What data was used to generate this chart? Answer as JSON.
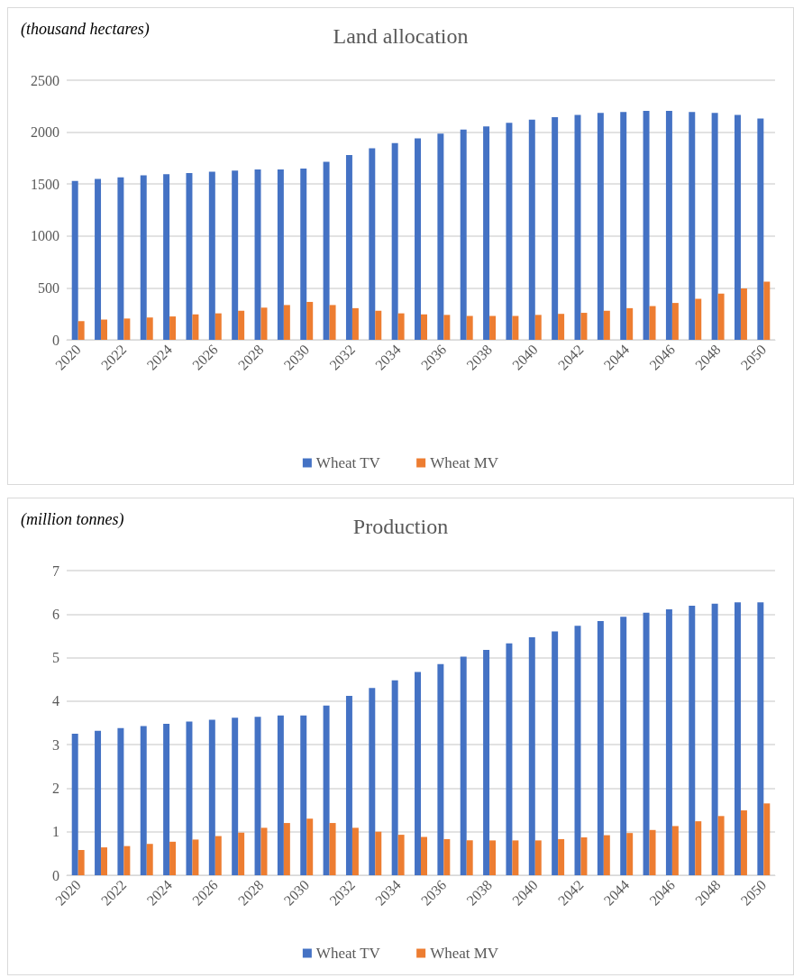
{
  "chart_data": [
    {
      "type": "bar",
      "title": "Land allocation",
      "ylabel": "(thousand hectares)",
      "categories": [
        "2020",
        null,
        "2022",
        null,
        "2024",
        null,
        "2026",
        null,
        "2028",
        null,
        "2030",
        null,
        "2032",
        null,
        "2034",
        null,
        "2036",
        null,
        "2038",
        null,
        "2040",
        null,
        "2042",
        null,
        "2044",
        null,
        "2046",
        null,
        "2048",
        null,
        "2050"
      ],
      "series": [
        {
          "name": "Wheat TV",
          "color": "#4472c4",
          "values": [
            1530,
            1550,
            1565,
            1585,
            1595,
            1605,
            1620,
            1630,
            1640,
            1640,
            1650,
            1715,
            1780,
            1845,
            1895,
            1940,
            1985,
            2025,
            2055,
            2090,
            2120,
            2145,
            2165,
            2185,
            2195,
            2205,
            2205,
            2195,
            2185,
            2165,
            2130
          ]
        },
        {
          "name": "Wheat MV",
          "color": "#ed7d31",
          "values": [
            180,
            195,
            205,
            215,
            225,
            245,
            255,
            280,
            310,
            335,
            365,
            335,
            305,
            280,
            255,
            245,
            240,
            230,
            230,
            230,
            240,
            250,
            260,
            280,
            305,
            325,
            355,
            395,
            445,
            495,
            560
          ]
        }
      ],
      "ylim": [
        0,
        2500
      ],
      "yticks": [
        0,
        500,
        1000,
        1500,
        2000,
        2500
      ],
      "grid": "y",
      "legend": "bottom"
    },
    {
      "type": "bar",
      "title": "Production",
      "ylabel": "(million tonnes)",
      "categories": [
        "2020",
        null,
        "2022",
        null,
        "2024",
        null,
        "2026",
        null,
        "2028",
        null,
        "2030",
        null,
        "2032",
        null,
        "2034",
        null,
        "2036",
        null,
        "2038",
        null,
        "2040",
        null,
        "2042",
        null,
        "2044",
        null,
        "2046",
        null,
        "2048",
        null,
        "2050"
      ],
      "series": [
        {
          "name": "Wheat TV",
          "color": "#4472c4",
          "values": [
            3.25,
            3.32,
            3.38,
            3.43,
            3.48,
            3.53,
            3.57,
            3.62,
            3.64,
            3.67,
            3.67,
            3.9,
            4.12,
            4.3,
            4.48,
            4.67,
            4.85,
            5.02,
            5.18,
            5.33,
            5.47,
            5.6,
            5.73,
            5.84,
            5.94,
            6.03,
            6.11,
            6.19,
            6.24,
            6.27,
            6.27
          ]
        },
        {
          "name": "Wheat MV",
          "color": "#ed7d31",
          "values": [
            0.58,
            0.64,
            0.67,
            0.72,
            0.77,
            0.82,
            0.9,
            0.98,
            1.09,
            1.2,
            1.3,
            1.2,
            1.09,
            1.0,
            0.93,
            0.88,
            0.83,
            0.8,
            0.8,
            0.8,
            0.8,
            0.83,
            0.87,
            0.92,
            0.97,
            1.04,
            1.13,
            1.24,
            1.36,
            1.49,
            1.65
          ]
        }
      ],
      "ylim": [
        0,
        7
      ],
      "yticks": [
        0,
        1,
        2,
        3,
        4,
        5,
        6,
        7
      ],
      "grid": "y",
      "legend": "bottom"
    }
  ]
}
